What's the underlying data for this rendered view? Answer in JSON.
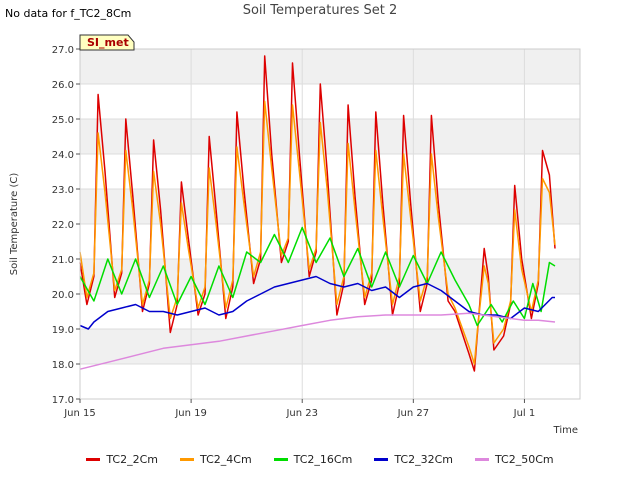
{
  "header": {
    "no_data_note": "No data for f_TC2_8Cm",
    "site_badge": "SI_met"
  },
  "chart_data": {
    "type": "line",
    "title": "Soil Temperatures Set 2",
    "xlabel": "Time",
    "ylabel": "Soil Temperature (C)",
    "ylim": [
      17.0,
      27.0
    ],
    "yticks": [
      "17.0",
      "18.0",
      "19.0",
      "20.0",
      "21.0",
      "22.0",
      "23.0",
      "24.0",
      "25.0",
      "26.0",
      "27.0"
    ],
    "xlim": [
      "2024-06-15",
      "2024-07-03"
    ],
    "xticks": [
      {
        "label": "Jun 15",
        "day": 0
      },
      {
        "label": "Jun 19",
        "day": 4
      },
      {
        "label": "Jun 23",
        "day": 8
      },
      {
        "label": "Jun 27",
        "day": 12
      },
      {
        "label": "Jul 1",
        "day": 16
      }
    ],
    "grid": true,
    "legend_position": "bottom",
    "series": [
      {
        "name": "TC2_2Cm",
        "color": "#dd0000",
        "x": [
          0.0,
          0.25,
          0.5,
          0.65,
          0.9,
          1.25,
          1.5,
          1.65,
          1.9,
          2.25,
          2.5,
          2.65,
          2.9,
          3.25,
          3.5,
          3.65,
          3.9,
          4.25,
          4.5,
          4.65,
          4.9,
          5.25,
          5.5,
          5.65,
          5.9,
          6.25,
          6.5,
          6.65,
          6.9,
          7.25,
          7.5,
          7.65,
          7.9,
          8.25,
          8.5,
          8.65,
          8.9,
          9.25,
          9.5,
          9.65,
          9.9,
          10.25,
          10.5,
          10.65,
          10.9,
          11.25,
          11.5,
          11.65,
          11.9,
          12.25,
          12.5,
          12.65,
          12.9,
          13.25,
          13.5,
          14.0,
          14.2,
          14.3,
          14.55,
          14.7,
          14.9,
          15.25,
          15.5,
          15.65,
          15.9,
          16.25,
          16.5,
          16.65,
          16.9,
          17.1
        ],
        "y": [
          20.9,
          19.7,
          20.5,
          25.7,
          23.5,
          19.9,
          20.6,
          25.0,
          22.8,
          19.5,
          20.3,
          24.4,
          22.4,
          18.9,
          19.7,
          23.2,
          21.6,
          19.4,
          20.0,
          24.5,
          22.4,
          19.3,
          20.2,
          25.2,
          23.0,
          20.3,
          21.0,
          26.8,
          24.0,
          20.9,
          21.5,
          26.6,
          24.0,
          20.5,
          21.2,
          26.0,
          23.5,
          19.4,
          20.3,
          25.4,
          22.8,
          19.7,
          20.4,
          25.2,
          22.6,
          19.4,
          20.3,
          25.1,
          22.6,
          19.5,
          20.3,
          25.1,
          22.6,
          19.8,
          19.5,
          18.3,
          17.8,
          18.8,
          21.3,
          20.5,
          18.4,
          18.8,
          19.7,
          23.1,
          21.0,
          19.3,
          20.3,
          24.1,
          23.4,
          21.3
        ]
      },
      {
        "name": "TC2_4Cm",
        "color": "#ff9900",
        "x": [
          0.0,
          0.25,
          0.5,
          0.65,
          0.9,
          1.25,
          1.5,
          1.65,
          1.9,
          2.25,
          2.5,
          2.65,
          2.9,
          3.25,
          3.5,
          3.65,
          3.9,
          4.25,
          4.5,
          4.65,
          4.9,
          5.25,
          5.5,
          5.65,
          5.9,
          6.25,
          6.5,
          6.65,
          6.9,
          7.25,
          7.5,
          7.65,
          7.9,
          8.25,
          8.5,
          8.65,
          8.9,
          9.25,
          9.5,
          9.65,
          9.9,
          10.25,
          10.5,
          10.65,
          10.9,
          11.25,
          11.5,
          11.65,
          11.9,
          12.25,
          12.5,
          12.65,
          12.9,
          13.25,
          13.5,
          14.0,
          14.2,
          14.3,
          14.55,
          14.7,
          14.9,
          15.25,
          15.5,
          15.65,
          15.9,
          16.25,
          16.5,
          16.65,
          16.9,
          17.1
        ],
        "y": [
          21.2,
          19.9,
          20.6,
          24.6,
          22.9,
          20.1,
          20.7,
          24.1,
          22.4,
          19.7,
          20.4,
          23.5,
          22.0,
          19.3,
          19.9,
          22.6,
          21.3,
          19.6,
          20.2,
          23.6,
          22.0,
          19.6,
          20.4,
          24.2,
          22.6,
          20.5,
          21.2,
          25.5,
          23.6,
          21.1,
          21.6,
          25.4,
          23.5,
          20.7,
          21.3,
          24.9,
          23.0,
          19.7,
          20.5,
          24.3,
          22.4,
          19.9,
          20.6,
          24.1,
          22.2,
          19.7,
          20.5,
          24.0,
          22.2,
          19.8,
          20.5,
          24.0,
          22.2,
          20.0,
          19.6,
          18.5,
          18.0,
          18.9,
          20.8,
          20.3,
          18.6,
          19.0,
          19.8,
          22.4,
          20.7,
          19.5,
          20.4,
          23.3,
          22.9,
          21.4
        ]
      },
      {
        "name": "TC2_16Cm",
        "color": "#00dd00",
        "x": [
          0.0,
          0.5,
          1.0,
          1.5,
          2.0,
          2.5,
          3.0,
          3.5,
          4.0,
          4.5,
          5.0,
          5.5,
          6.0,
          6.5,
          7.0,
          7.5,
          8.0,
          8.5,
          9.0,
          9.5,
          10.0,
          10.5,
          11.0,
          11.5,
          12.0,
          12.5,
          13.0,
          13.5,
          14.0,
          14.3,
          14.8,
          15.2,
          15.6,
          16.0,
          16.3,
          16.6,
          16.9,
          17.1
        ],
        "y": [
          20.5,
          19.8,
          21.0,
          20.0,
          21.0,
          19.9,
          20.8,
          19.7,
          20.5,
          19.7,
          20.8,
          19.9,
          21.2,
          20.9,
          21.7,
          20.9,
          21.9,
          20.9,
          21.6,
          20.5,
          21.3,
          20.2,
          21.2,
          20.2,
          21.1,
          20.3,
          21.2,
          20.4,
          19.7,
          19.1,
          19.7,
          19.2,
          19.8,
          19.3,
          20.3,
          19.5,
          20.9,
          20.8
        ]
      },
      {
        "name": "TC2_32Cm",
        "color": "#0000cc",
        "x": [
          0.0,
          0.3,
          0.5,
          1.0,
          1.5,
          2.0,
          2.5,
          3.0,
          3.5,
          4.0,
          4.5,
          5.0,
          5.5,
          6.0,
          6.5,
          7.0,
          7.5,
          8.0,
          8.5,
          9.0,
          9.5,
          10.0,
          10.5,
          11.0,
          11.5,
          12.0,
          12.5,
          13.0,
          13.5,
          14.0,
          14.5,
          15.0,
          15.5,
          16.0,
          16.5,
          17.0,
          17.1
        ],
        "y": [
          19.1,
          19.0,
          19.2,
          19.5,
          19.6,
          19.7,
          19.5,
          19.5,
          19.4,
          19.5,
          19.6,
          19.4,
          19.5,
          19.8,
          20.0,
          20.2,
          20.3,
          20.4,
          20.5,
          20.3,
          20.2,
          20.3,
          20.1,
          20.2,
          19.9,
          20.2,
          20.3,
          20.1,
          19.8,
          19.5,
          19.4,
          19.4,
          19.3,
          19.6,
          19.5,
          19.9,
          19.9
        ]
      },
      {
        "name": "TC2_50Cm",
        "color": "#dd88dd",
        "x": [
          0.0,
          1.0,
          2.0,
          3.0,
          4.0,
          5.0,
          6.0,
          7.0,
          8.0,
          9.0,
          10.0,
          11.0,
          12.0,
          13.0,
          14.0,
          15.0,
          16.0,
          16.5,
          17.1
        ],
        "y": [
          17.85,
          18.05,
          18.25,
          18.45,
          18.55,
          18.65,
          18.8,
          18.95,
          19.1,
          19.25,
          19.35,
          19.4,
          19.4,
          19.4,
          19.45,
          19.35,
          19.25,
          19.25,
          19.2
        ]
      }
    ]
  }
}
